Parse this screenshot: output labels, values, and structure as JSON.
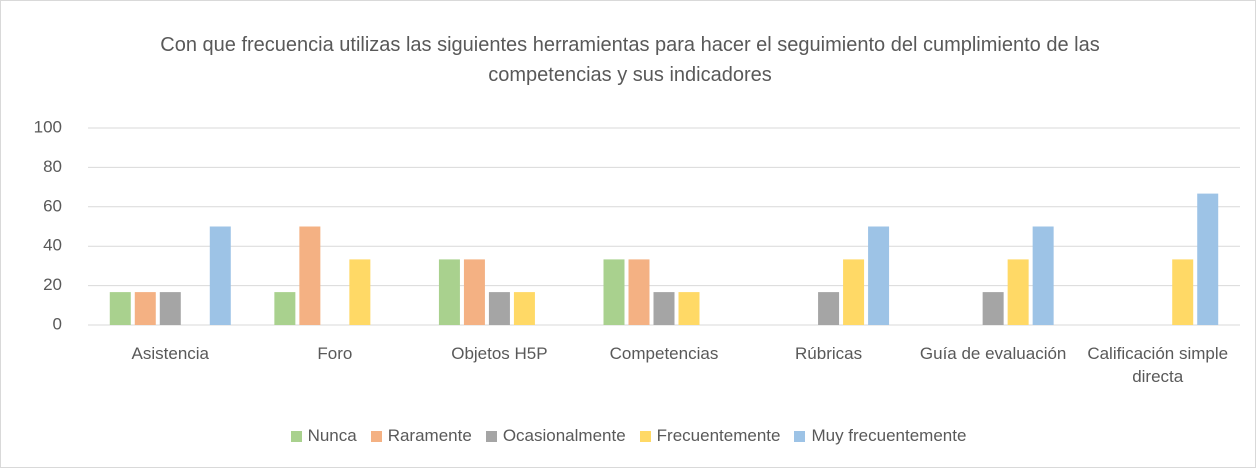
{
  "chart_data": {
    "type": "bar",
    "title": "Con que frecuencia utilizas las siguientes herramientas para hacer el seguimiento del cumplimiento de las competencias y sus indicadores",
    "categories": [
      "Asistencia",
      "Foro",
      "Objetos H5P",
      "Competencias",
      "Rúbricas",
      "Guía de evaluación",
      "Calificación simple directa"
    ],
    "series": [
      {
        "name": "Nunca",
        "color": "#a9d18e",
        "values": [
          16.7,
          16.7,
          33.3,
          33.3,
          0,
          0,
          0
        ]
      },
      {
        "name": "Raramente",
        "color": "#f4b183",
        "values": [
          16.7,
          50,
          33.3,
          33.3,
          0,
          0,
          0
        ]
      },
      {
        "name": "Ocasionalmente",
        "color": "#a5a5a5",
        "values": [
          16.7,
          0,
          16.7,
          16.7,
          16.7,
          16.7,
          0
        ]
      },
      {
        "name": "Frecuentemente",
        "color": "#ffd966",
        "values": [
          0,
          33.3,
          16.7,
          16.7,
          33.3,
          33.3,
          33.3
        ]
      },
      {
        "name": "Muy frecuentemente",
        "color": "#9dc3e6",
        "values": [
          50,
          0,
          0,
          0,
          50,
          50,
          66.7
        ]
      }
    ],
    "ylim": [
      0,
      100
    ],
    "yticks": [
      0,
      20,
      40,
      60,
      80,
      100
    ],
    "grid": true,
    "legend": "bottom"
  }
}
